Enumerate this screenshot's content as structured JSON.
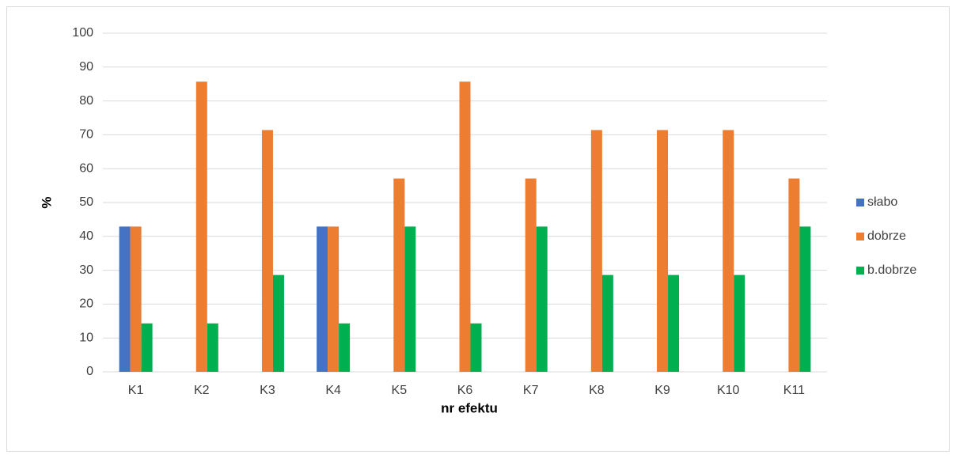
{
  "chart_data": {
    "type": "bar",
    "categories": [
      "K1",
      "K2",
      "K3",
      "K4",
      "K5",
      "K6",
      "K7",
      "K8",
      "K9",
      "K10",
      "K11"
    ],
    "series": [
      {
        "name": "słabo",
        "color": "#4472c4",
        "values": [
          42.9,
          0,
          0,
          42.9,
          0,
          0,
          0,
          0,
          0,
          0,
          0
        ]
      },
      {
        "name": "dobrze",
        "color": "#ed7d31",
        "values": [
          42.9,
          85.7,
          71.4,
          42.9,
          57.1,
          85.7,
          57.1,
          71.4,
          71.4,
          71.4,
          57.1
        ]
      },
      {
        "name": "b.dobrze",
        "color": "#00b050",
        "values": [
          14.3,
          14.3,
          28.6,
          14.3,
          42.9,
          14.3,
          42.9,
          28.6,
          28.6,
          28.6,
          42.9
        ]
      }
    ],
    "x_label": "nr efektu",
    "y_label": "%",
    "ylim": [
      0,
      100
    ],
    "yticks": [
      0,
      10,
      20,
      30,
      40,
      50,
      60,
      70,
      80,
      90,
      100
    ],
    "grid": true,
    "legend": "right"
  }
}
